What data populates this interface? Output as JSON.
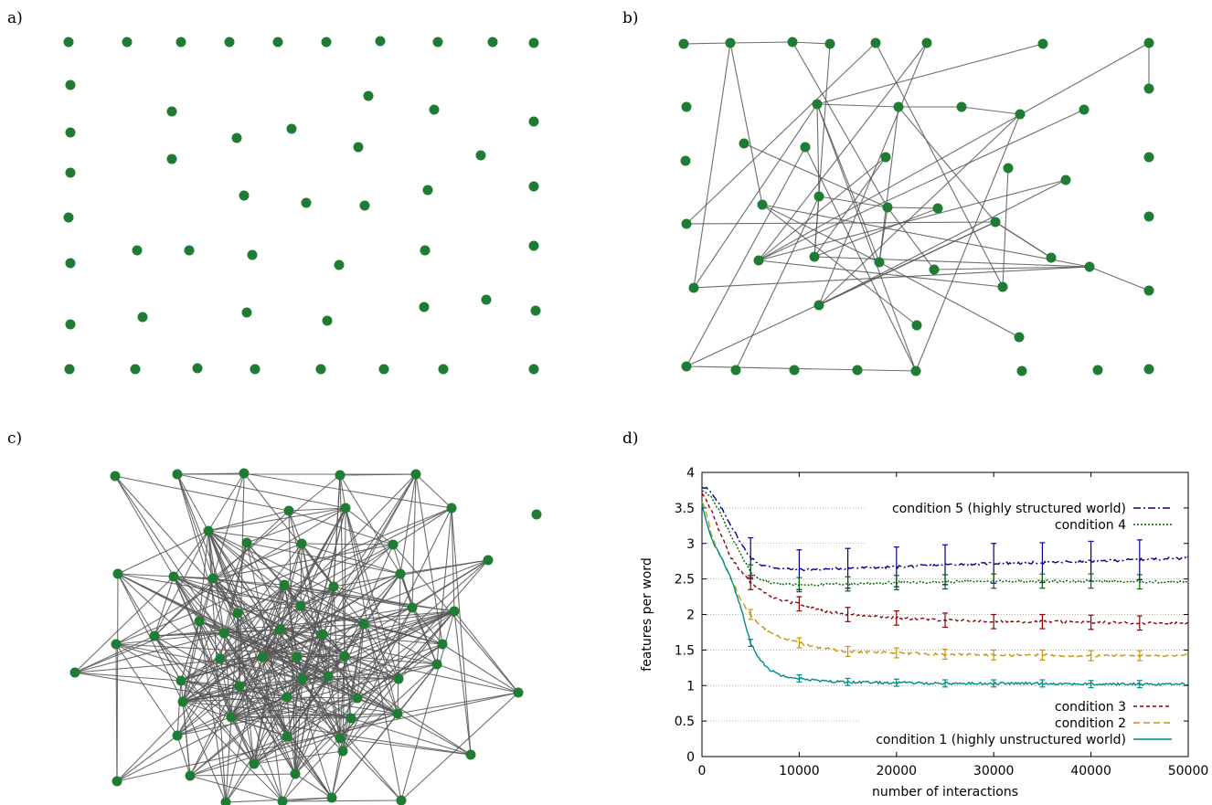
{
  "panels": {
    "a": {
      "label": "a)"
    },
    "b": {
      "label": "b)"
    },
    "c": {
      "label": "c)"
    },
    "d": {
      "label": "d)"
    }
  },
  "colors": {
    "node": "#1e7d32",
    "edge": "#555555",
    "condition5": "#00008b",
    "condition4": "#006400",
    "condition3": "#8b0000",
    "condition2": "#c8960c",
    "condition1": "#008b8b",
    "grid": "#999999"
  },
  "chart_data": {
    "type": "line",
    "xlabel": "number of interactions",
    "ylabel": "features per word",
    "xlim": [
      0,
      50000
    ],
    "ylim": [
      0,
      4
    ],
    "x_ticks": [
      "0",
      "10000",
      "20000",
      "30000",
      "40000",
      "50000"
    ],
    "y_ticks": [
      "0",
      "0.5",
      "1",
      "1.5",
      "2",
      "2.5",
      "3",
      "3.5",
      "4"
    ],
    "grid": "horizontal dotted",
    "legend_top": [
      "condition 5 (highly structured world)",
      "condition 4"
    ],
    "legend_bottom": [
      "condition 3",
      "condition 2",
      "condition 1 (highly unstructured world)"
    ],
    "x": [
      0,
      500,
      1000,
      2000,
      3000,
      4000,
      5000,
      6000,
      7000,
      8000,
      10000,
      12500,
      15000,
      17500,
      20000,
      25000,
      30000,
      35000,
      40000,
      45000,
      50000
    ],
    "series": [
      {
        "name": "condition 5 (highly structured world)",
        "color_key": "condition5",
        "dash": "8,3,2,3",
        "values": [
          3.8,
          3.78,
          3.7,
          3.5,
          3.25,
          3.0,
          2.8,
          2.7,
          2.67,
          2.65,
          2.63,
          2.64,
          2.65,
          2.66,
          2.67,
          2.7,
          2.72,
          2.73,
          2.75,
          2.77,
          2.8
        ],
        "errorbars_x": [
          5000,
          10000,
          15000,
          20000,
          25000,
          30000,
          35000,
          40000,
          45000
        ],
        "err": 0.28
      },
      {
        "name": "condition 4",
        "color_key": "condition4",
        "dash": "2,2",
        "values": [
          3.75,
          3.72,
          3.65,
          3.4,
          3.1,
          2.85,
          2.6,
          2.5,
          2.45,
          2.43,
          2.42,
          2.42,
          2.43,
          2.44,
          2.45,
          2.46,
          2.47,
          2.47,
          2.47,
          2.46,
          2.46
        ],
        "errorbars_x": [
          5000,
          10000,
          15000,
          20000,
          25000,
          30000,
          35000,
          40000,
          45000
        ],
        "err": 0.1
      },
      {
        "name": "condition 3",
        "color_key": "condition3",
        "dash": "4,3",
        "values": [
          3.7,
          3.6,
          3.45,
          3.1,
          2.8,
          2.6,
          2.45,
          2.35,
          2.25,
          2.2,
          2.15,
          2.05,
          2.0,
          1.98,
          1.95,
          1.92,
          1.9,
          1.9,
          1.89,
          1.88,
          1.88
        ],
        "errorbars_x": [
          5000,
          10000,
          15000,
          20000,
          25000,
          30000,
          35000,
          40000,
          45000
        ],
        "err": 0.1
      },
      {
        "name": "condition 2",
        "color_key": "condition2",
        "dash": "7,4",
        "values": [
          3.6,
          3.4,
          3.1,
          2.8,
          2.5,
          2.2,
          2.0,
          1.85,
          1.75,
          1.68,
          1.6,
          1.52,
          1.48,
          1.47,
          1.46,
          1.44,
          1.43,
          1.43,
          1.42,
          1.42,
          1.43
        ],
        "errorbars_x": [
          5000,
          10000,
          15000,
          20000,
          25000,
          30000,
          35000,
          40000,
          45000
        ],
        "err": 0.07
      },
      {
        "name": "condition 1 (highly unstructured world)",
        "color_key": "condition1",
        "dash": "",
        "values": [
          3.55,
          3.3,
          3.05,
          2.8,
          2.5,
          2.1,
          1.6,
          1.35,
          1.22,
          1.15,
          1.1,
          1.06,
          1.05,
          1.04,
          1.04,
          1.03,
          1.03,
          1.03,
          1.02,
          1.02,
          1.02
        ],
        "errorbars_x": [
          5000,
          10000,
          15000,
          20000,
          25000,
          30000,
          35000,
          40000,
          45000
        ],
        "err": 0.05
      }
    ]
  }
}
